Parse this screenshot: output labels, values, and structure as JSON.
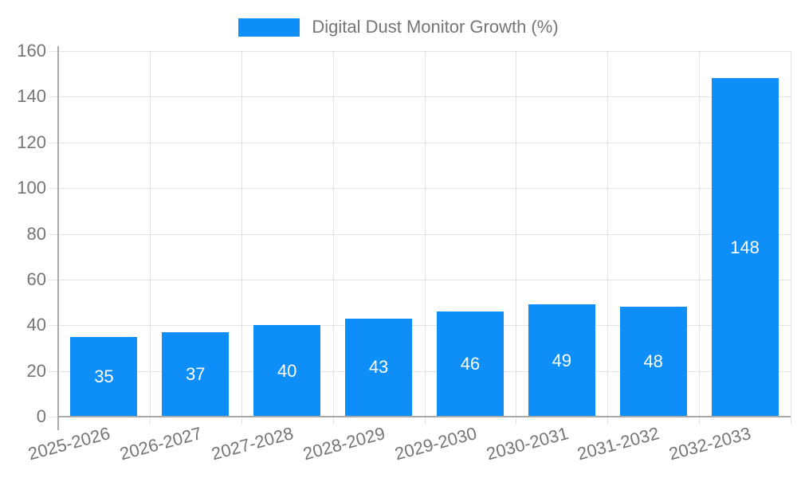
{
  "legend": {
    "label": "Digital Dust Monitor Growth (%)"
  },
  "colors": {
    "bar": "#0d8ef9",
    "grid": "#e3e3e3",
    "axis": "#a9a9a9",
    "axis_label": "#757575",
    "value_label": "#ffffff",
    "background": "#ffffff"
  },
  "chart_data": {
    "type": "bar",
    "title": "Digital Dust Monitor Growth (%)",
    "categories": [
      "2025-2026",
      "2026-2027",
      "2027-2028",
      "2028-2029",
      "2029-2030",
      "2030-2031",
      "2031-2032",
      "2032-2033"
    ],
    "values": [
      35,
      37,
      40,
      43,
      46,
      49,
      48,
      148
    ],
    "bar_value_labels": [
      "35",
      "37",
      "40",
      "43",
      "46",
      "49",
      "48",
      "148"
    ],
    "xlabel": "",
    "ylabel": "",
    "ylim": [
      0,
      160
    ],
    "yticks": [
      0,
      20,
      40,
      60,
      80,
      100,
      120,
      140,
      160
    ],
    "grid": true,
    "legend_position": "top-center",
    "x_tick_rotation_deg": -15
  }
}
